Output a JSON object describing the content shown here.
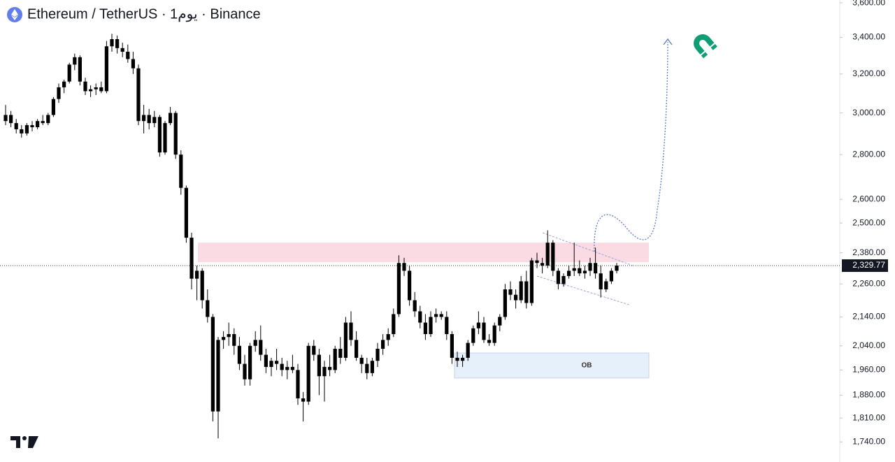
{
  "chart_data": {
    "type": "candlestick",
    "title": "Ethereum / TetherUS · 1يوم · Binance",
    "color": "#000000",
    "log_scale": true,
    "ylim": [
      1683,
      3617
    ],
    "yticks": [
      {
        "value": 3600,
        "label": "3,600.00"
      },
      {
        "value": 3400,
        "label": "3,400.00"
      },
      {
        "value": 3200,
        "label": "3,200.00"
      },
      {
        "value": 3000,
        "label": "3,000.00"
      },
      {
        "value": 2800,
        "label": "2,800.00"
      },
      {
        "value": 2600,
        "label": "2,600.00"
      },
      {
        "value": 2500,
        "label": "2,500.00"
      },
      {
        "value": 2380,
        "label": "2,380.00"
      },
      {
        "value": 2260,
        "label": "2,260.00"
      },
      {
        "value": 2140,
        "label": "2,140.00"
      },
      {
        "value": 2040,
        "label": "2,040.00"
      },
      {
        "value": 1960,
        "label": "1,960.00"
      },
      {
        "value": 1880,
        "label": "1,880.00"
      },
      {
        "value": 1810,
        "label": "1,810.00"
      },
      {
        "value": 1740,
        "label": "1,740.00"
      }
    ],
    "last_price": {
      "value": 2329.77,
      "label": "2,329.77"
    },
    "zones": [
      {
        "range": [
          2343,
          2420
        ],
        "color": "#fadbe3"
      },
      {
        "range": [
          1934,
          2016
        ],
        "color": "#e6f0fb",
        "label": "OB"
      }
    ],
    "ohlc": [
      [
        2960,
        3040,
        2940,
        2990
      ],
      [
        2990,
        3010,
        2930,
        2950
      ],
      [
        2950,
        2970,
        2900,
        2920
      ],
      [
        2920,
        2940,
        2880,
        2900
      ],
      [
        2900,
        2950,
        2890,
        2940
      ],
      [
        2940,
        2960,
        2910,
        2930
      ],
      [
        2930,
        2970,
        2920,
        2960
      ],
      [
        2960,
        2990,
        2940,
        2950
      ],
      [
        2950,
        3000,
        2940,
        2990
      ],
      [
        2990,
        3080,
        2980,
        3070
      ],
      [
        3070,
        3150,
        3050,
        3130
      ],
      [
        3130,
        3170,
        3100,
        3160
      ],
      [
        3160,
        3260,
        3150,
        3250
      ],
      [
        3250,
        3310,
        3220,
        3290
      ],
      [
        3290,
        3300,
        3140,
        3160
      ],
      [
        3160,
        3180,
        3090,
        3110
      ],
      [
        3110,
        3140,
        3080,
        3120
      ],
      [
        3120,
        3150,
        3090,
        3130
      ],
      [
        3130,
        3160,
        3100,
        3110
      ],
      [
        3110,
        3380,
        3100,
        3350
      ],
      [
        3350,
        3420,
        3320,
        3390
      ],
      [
        3390,
        3410,
        3310,
        3340
      ],
      [
        3340,
        3370,
        3290,
        3320
      ],
      [
        3320,
        3360,
        3260,
        3280
      ],
      [
        3280,
        3320,
        3200,
        3230
      ],
      [
        3230,
        3250,
        2940,
        2960
      ],
      [
        2960,
        3040,
        2900,
        2990
      ],
      [
        2990,
        3020,
        2920,
        2950
      ],
      [
        2950,
        3010,
        2930,
        2980
      ],
      [
        2980,
        2990,
        2790,
        2810
      ],
      [
        2810,
        2960,
        2800,
        2950
      ],
      [
        2950,
        3030,
        2940,
        3000
      ],
      [
        3000,
        3010,
        2780,
        2800
      ],
      [
        2800,
        2820,
        2620,
        2650
      ],
      [
        2650,
        2660,
        2420,
        2440
      ],
      [
        2440,
        2460,
        2240,
        2280
      ],
      [
        2280,
        2330,
        2200,
        2310
      ],
      [
        2310,
        2320,
        2170,
        2200
      ],
      [
        2200,
        2240,
        2120,
        2140
      ],
      [
        2140,
        2150,
        1800,
        1830
      ],
      [
        1830,
        2070,
        1750,
        2060
      ],
      [
        2060,
        2090,
        2030,
        2070
      ],
      [
        2070,
        2120,
        2040,
        2080
      ],
      [
        2080,
        2100,
        2010,
        2040
      ],
      [
        2040,
        2070,
        1960,
        1980
      ],
      [
        1980,
        2010,
        1910,
        1930
      ],
      [
        1930,
        2050,
        1910,
        2040
      ],
      [
        2040,
        2090,
        2020,
        2060
      ],
      [
        2060,
        2110,
        1990,
        2010
      ],
      [
        2010,
        2030,
        1950,
        1970
      ],
      [
        1970,
        2000,
        1940,
        1990
      ],
      [
        1990,
        2030,
        1960,
        1980
      ],
      [
        1980,
        2000,
        1940,
        1960
      ],
      [
        1960,
        1990,
        1930,
        1970
      ],
      [
        1970,
        2010,
        1950,
        1960
      ],
      [
        1960,
        1980,
        1850,
        1870
      ],
      [
        1870,
        1890,
        1800,
        1860
      ],
      [
        1860,
        2050,
        1850,
        2040
      ],
      [
        2040,
        2060,
        1990,
        2010
      ],
      [
        2010,
        2030,
        1880,
        1940
      ],
      [
        1940,
        1990,
        1860,
        1970
      ],
      [
        1970,
        2010,
        1940,
        1960
      ],
      [
        1960,
        2040,
        1950,
        2030
      ],
      [
        2030,
        2070,
        1980,
        2000
      ],
      [
        2000,
        2140,
        1990,
        2120
      ],
      [
        2120,
        2160,
        2040,
        2060
      ],
      [
        2060,
        2090,
        1990,
        2000
      ],
      [
        2000,
        2010,
        1950,
        1980
      ],
      [
        1980,
        2000,
        1930,
        1950
      ],
      [
        1950,
        2000,
        1940,
        1990
      ],
      [
        1990,
        2050,
        1970,
        2030
      ],
      [
        2030,
        2080,
        2010,
        2060
      ],
      [
        2060,
        2100,
        2040,
        2080
      ],
      [
        2080,
        2170,
        2070,
        2150
      ],
      [
        2150,
        2370,
        2140,
        2340
      ],
      [
        2340,
        2360,
        2290,
        2310
      ],
      [
        2310,
        2330,
        2180,
        2200
      ],
      [
        2200,
        2230,
        2140,
        2160
      ],
      [
        2160,
        2180,
        2100,
        2120
      ],
      [
        2120,
        2150,
        2060,
        2080
      ],
      [
        2080,
        2160,
        2070,
        2140
      ],
      [
        2140,
        2170,
        2120,
        2150
      ],
      [
        2150,
        2160,
        2130,
        2140
      ],
      [
        2140,
        2160,
        2060,
        2080
      ],
      [
        2080,
        2090,
        1980,
        2000
      ],
      [
        2000,
        2020,
        1970,
        1990
      ],
      [
        1990,
        2010,
        1970,
        2000
      ],
      [
        2000,
        2060,
        1990,
        2050
      ],
      [
        2050,
        2110,
        2040,
        2100
      ],
      [
        2100,
        2160,
        2080,
        2120
      ],
      [
        2120,
        2140,
        2050,
        2060
      ],
      [
        2060,
        2080,
        2040,
        2050
      ],
      [
        2050,
        2120,
        2040,
        2110
      ],
      [
        2110,
        2150,
        2090,
        2140
      ],
      [
        2140,
        2260,
        2130,
        2240
      ],
      [
        2240,
        2270,
        2200,
        2220
      ],
      [
        2220,
        2240,
        2170,
        2200
      ],
      [
        2200,
        2290,
        2190,
        2270
      ],
      [
        2270,
        2310,
        2170,
        2190
      ],
      [
        2190,
        2360,
        2180,
        2350
      ],
      [
        2350,
        2380,
        2320,
        2340
      ],
      [
        2340,
        2360,
        2300,
        2330
      ],
      [
        2330,
        2470,
        2320,
        2420
      ],
      [
        2420,
        2430,
        2290,
        2310
      ],
      [
        2310,
        2320,
        2240,
        2260
      ],
      [
        2260,
        2300,
        2250,
        2290
      ],
      [
        2290,
        2330,
        2280,
        2310
      ],
      [
        2310,
        2420,
        2290,
        2320
      ],
      [
        2320,
        2350,
        2290,
        2300
      ],
      [
        2300,
        2330,
        2280,
        2310
      ],
      [
        2310,
        2360,
        2290,
        2340
      ],
      [
        2340,
        2400,
        2280,
        2300
      ],
      [
        2300,
        2330,
        2210,
        2240
      ],
      [
        2240,
        2280,
        2230,
        2270
      ],
      [
        2270,
        2320,
        2260,
        2310
      ],
      [
        2310,
        2340,
        2300,
        2329.77
      ]
    ]
  }
}
